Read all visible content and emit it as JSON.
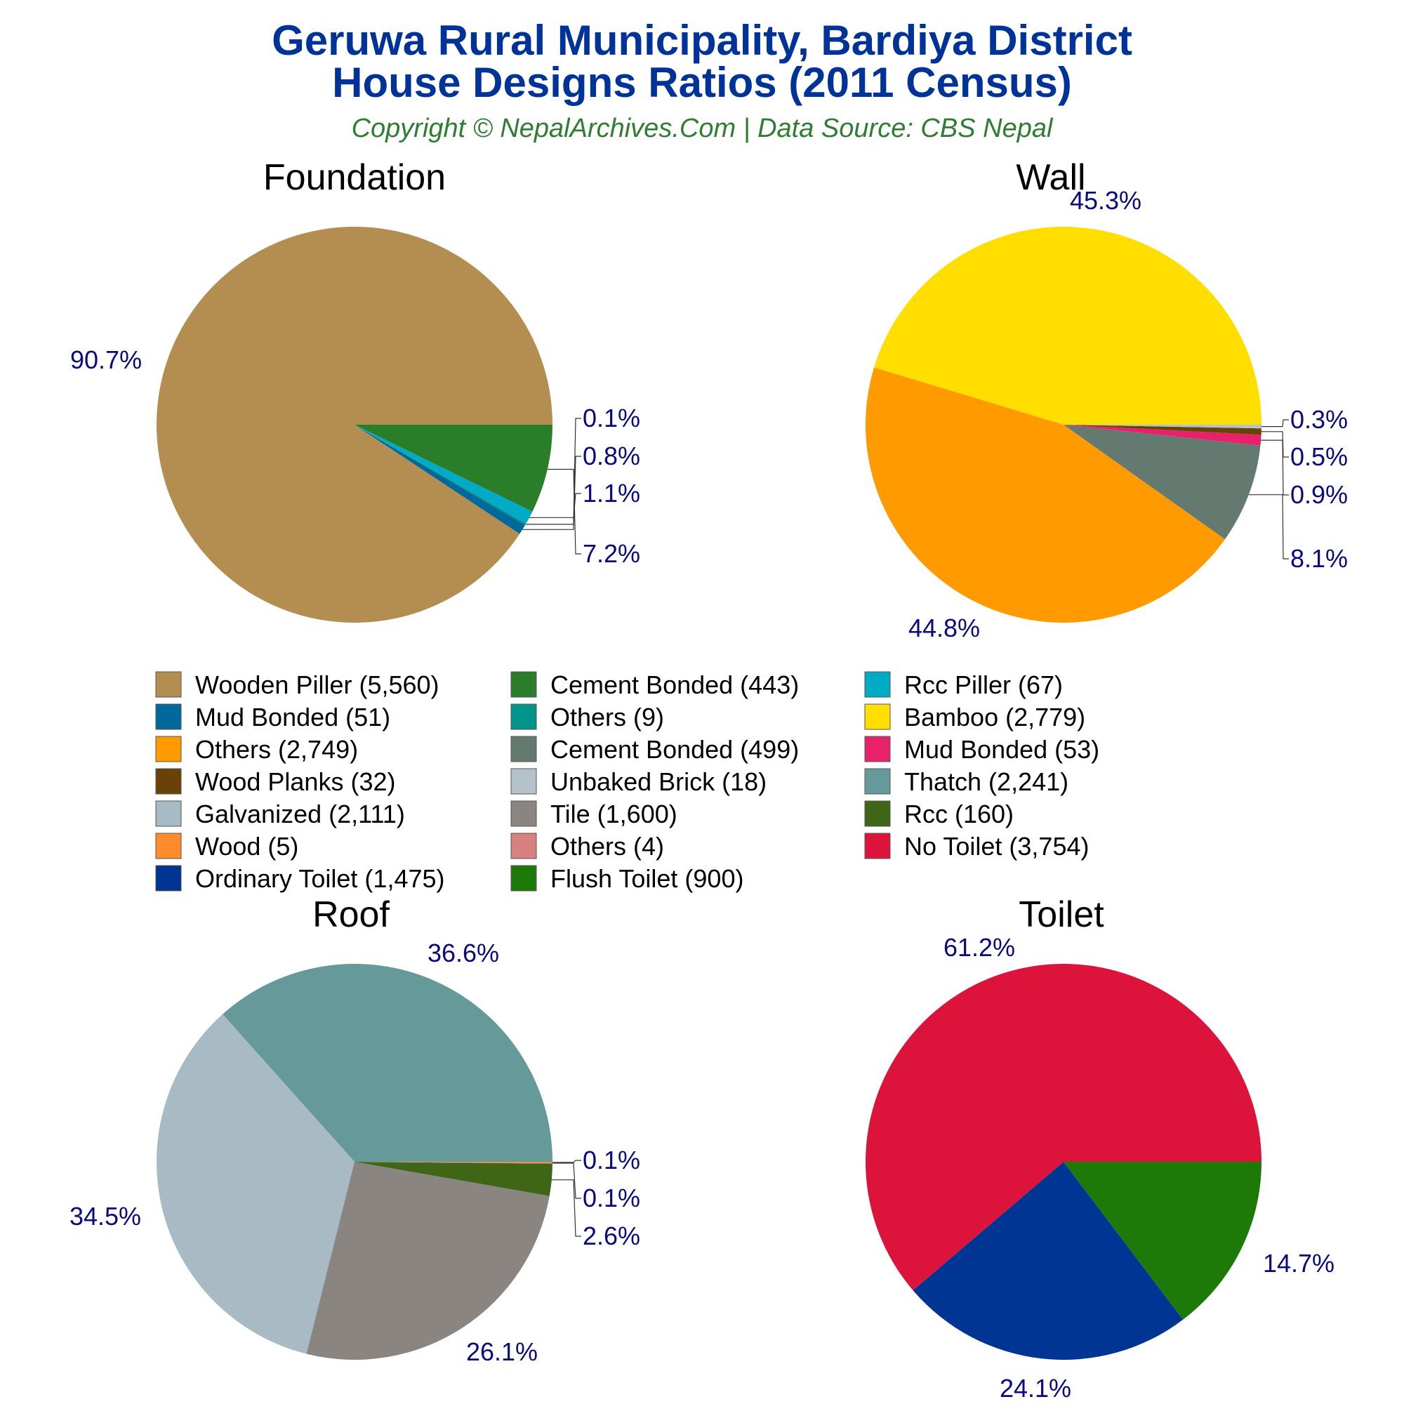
{
  "title": {
    "line1": "Geruwa Rural Municipality, Bardiya District",
    "line2": "House Designs Ratios (2011 Census)"
  },
  "subtitle": "Copyright © NepalArchives.Com | Data Source: CBS Nepal",
  "chart_data": [
    {
      "type": "pie",
      "title": "Foundation",
      "slices": [
        {
          "label": "Wooden Piller",
          "value": 5560,
          "pct_label": "90.7%",
          "color": "#b38e50"
        },
        {
          "label": "Mud Bonded",
          "value": 51,
          "pct_label": "0.8%",
          "color": "#00689a"
        },
        {
          "label": "Others",
          "value": 9,
          "pct_label": "0.1%",
          "color": "#00948a"
        },
        {
          "label": "Rcc Piller",
          "value": 67,
          "pct_label": "1.1%",
          "color": "#00abc6"
        },
        {
          "label": "Cement Bonded",
          "value": 443,
          "pct_label": "7.2%",
          "color": "#2a7e2a"
        }
      ]
    },
    {
      "type": "pie",
      "title": "Wall",
      "slices": [
        {
          "label": "Bamboo",
          "value": 2779,
          "pct_label": "45.3%",
          "color": "#ffde00"
        },
        {
          "label": "Others",
          "value": 2749,
          "pct_label": "44.8%",
          "color": "#ff9a00"
        },
        {
          "label": "Cement Bonded",
          "value": 499,
          "pct_label": "8.1%",
          "color": "#647a70"
        },
        {
          "label": "Mud Bonded",
          "value": 53,
          "pct_label": "0.9%",
          "color": "#e8226a"
        },
        {
          "label": "Wood Planks",
          "value": 32,
          "pct_label": "0.5%",
          "color": "#6a4208"
        },
        {
          "label": "Unbaked Brick",
          "value": 18,
          "pct_label": "0.3%",
          "color": "#b4c2cc"
        }
      ]
    },
    {
      "type": "pie",
      "title": "Roof",
      "slices": [
        {
          "label": "Thatch",
          "value": 2241,
          "pct_label": "36.6%",
          "color": "#669999"
        },
        {
          "label": "Galvanized",
          "value": 2111,
          "pct_label": "34.5%",
          "color": "#a8bac4"
        },
        {
          "label": "Tile",
          "value": 1600,
          "pct_label": "26.1%",
          "color": "#8a8580"
        },
        {
          "label": "Rcc",
          "value": 160,
          "pct_label": "2.6%",
          "color": "#3f6516"
        },
        {
          "label": "Others",
          "value": 4,
          "pct_label": "0.1%",
          "color": "#d98080"
        },
        {
          "label": "Wood",
          "value": 5,
          "pct_label": "0.1%",
          "color": "#ff8c2a"
        }
      ]
    },
    {
      "type": "pie",
      "title": "Toilet",
      "slices": [
        {
          "label": "No Toilet",
          "value": 3754,
          "pct_label": "61.2%",
          "color": "#dc143c"
        },
        {
          "label": "Ordinary Toilet",
          "value": 1475,
          "pct_label": "24.1%",
          "color": "#003594"
        },
        {
          "label": "Flush Toilet",
          "value": 900,
          "pct_label": "14.7%",
          "color": "#1e7a08"
        }
      ]
    }
  ],
  "legend": [
    {
      "text": "Wooden Piller (5,560)",
      "color": "#b38e50"
    },
    {
      "text": "Cement Bonded (443)",
      "color": "#2a7e2a"
    },
    {
      "text": "Rcc Piller (67)",
      "color": "#00abc6"
    },
    {
      "text": "Mud Bonded (51)",
      "color": "#00689a"
    },
    {
      "text": "Others (9)",
      "color": "#00948a"
    },
    {
      "text": "Bamboo (2,779)",
      "color": "#ffde00"
    },
    {
      "text": "Others (2,749)",
      "color": "#ff9a00"
    },
    {
      "text": "Cement Bonded (499)",
      "color": "#647a70"
    },
    {
      "text": "Mud Bonded (53)",
      "color": "#e8226a"
    },
    {
      "text": "Wood Planks (32)",
      "color": "#6a4208"
    },
    {
      "text": "Unbaked Brick (18)",
      "color": "#b4c2cc"
    },
    {
      "text": "Thatch (2,241)",
      "color": "#669999"
    },
    {
      "text": "Galvanized (2,111)",
      "color": "#a8bac4"
    },
    {
      "text": "Tile (1,600)",
      "color": "#8a8580"
    },
    {
      "text": "Rcc (160)",
      "color": "#3f6516"
    },
    {
      "text": "Wood (5)",
      "color": "#ff8c2a"
    },
    {
      "text": "Others (4)",
      "color": "#d98080"
    },
    {
      "text": "No Toilet (3,754)",
      "color": "#dc143c"
    },
    {
      "text": "Ordinary Toilet (1,475)",
      "color": "#003594"
    },
    {
      "text": "Flush Toilet (900)",
      "color": "#1e7a08"
    }
  ]
}
